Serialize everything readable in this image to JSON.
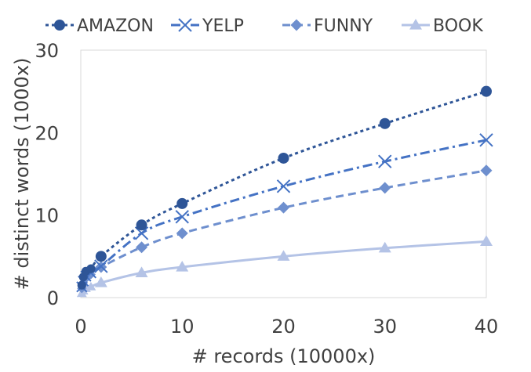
{
  "chart_data": {
    "type": "line",
    "title": "",
    "xlabel": "# records (10000x)",
    "ylabel": "# distinct words (1000x)",
    "xlim": [
      0,
      40
    ],
    "ylim": [
      0,
      30
    ],
    "xticks": [
      0,
      10,
      20,
      30,
      40
    ],
    "yticks": [
      0,
      10,
      20,
      30
    ],
    "grid": false,
    "legend_position": "top",
    "series": [
      {
        "name": "AMAZON",
        "color": "#2E5597",
        "line": "dotted",
        "marker": "circle",
        "x": [
          0.1,
          0.25,
          0.5,
          1,
          2,
          6,
          10,
          20,
          30,
          40
        ],
        "y": [
          1.5,
          2.5,
          3.2,
          3.5,
          5.0,
          8.8,
          11.4,
          16.9,
          21.1,
          25.0
        ]
      },
      {
        "name": "YELP",
        "color": "#4472C4",
        "line": "dash-dot",
        "marker": "x",
        "x": [
          0.1,
          0.25,
          0.5,
          1,
          2,
          6,
          10,
          20,
          30,
          40
        ],
        "y": [
          1.3,
          2.0,
          2.6,
          3.0,
          3.8,
          7.8,
          9.8,
          13.5,
          16.5,
          19.1
        ]
      },
      {
        "name": "FUNNY",
        "color": "#6E8FCE",
        "line": "dashed",
        "marker": "diamond",
        "x": [
          0.1,
          0.25,
          0.5,
          1,
          2,
          6,
          10,
          20,
          30,
          40
        ],
        "y": [
          1.1,
          1.8,
          2.3,
          2.8,
          3.7,
          6.1,
          7.8,
          10.9,
          13.3,
          15.4
        ]
      },
      {
        "name": "BOOK",
        "color": "#B4C3E6",
        "line": "solid",
        "marker": "triangle",
        "x": [
          0.1,
          0.25,
          0.5,
          1,
          2,
          6,
          10,
          20,
          30,
          40
        ],
        "y": [
          0.5,
          0.8,
          1.1,
          1.3,
          1.8,
          3.0,
          3.7,
          5.0,
          6.0,
          6.8
        ]
      }
    ]
  }
}
